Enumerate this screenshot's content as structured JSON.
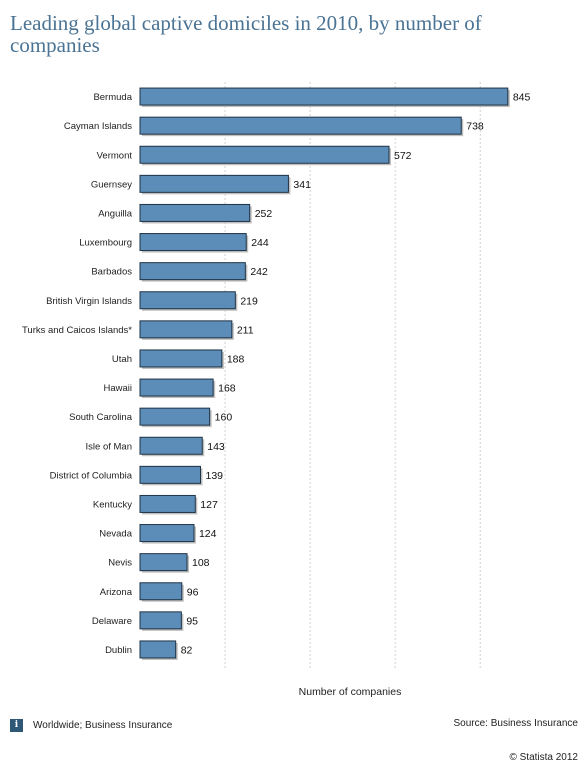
{
  "title": "Leading global captive domiciles in 2010, by number of companies",
  "chart_data": {
    "type": "bar",
    "orientation": "horizontal",
    "categories": [
      "Bermuda",
      "Cayman Islands",
      "Vermont",
      "Guernsey",
      "Anguilla",
      "Luxembourg",
      "Barbados",
      "British Virgin Islands",
      "Turks and Caicos Islands*",
      "Utah",
      "Hawaii",
      "South Carolina",
      "Isle of Man",
      "District of Columbia",
      "Kentucky",
      "Nevada",
      "Nevis",
      "Arizona",
      "Delaware",
      "Dublin"
    ],
    "values": [
      845,
      738,
      572,
      341,
      252,
      244,
      242,
      219,
      211,
      188,
      168,
      160,
      143,
      139,
      127,
      124,
      108,
      96,
      95,
      82
    ],
    "xlabel": "Number of companies",
    "ylabel": "",
    "xlim": [
      0,
      850
    ],
    "grid": true,
    "bar_color": "#5b8db8",
    "bar_edge_color": "#1f3346"
  },
  "footer": {
    "left": "Worldwide; Business Insurance",
    "info_icon": "info-icon",
    "info_glyph": "i",
    "source": "Source: Business Insurance",
    "copyright": "© Statista 2012"
  }
}
